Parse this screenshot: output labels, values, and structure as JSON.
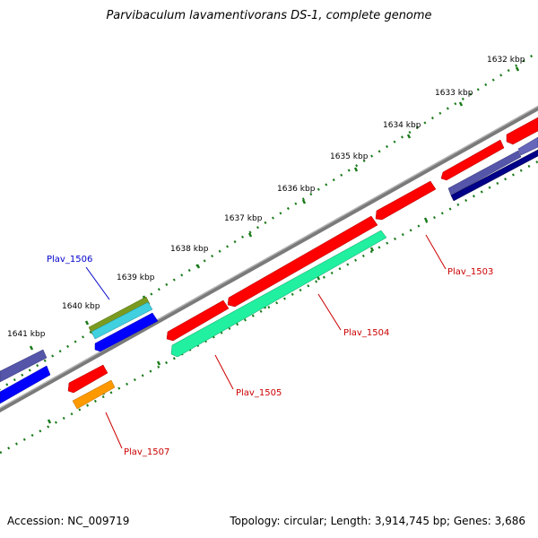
{
  "title": "Parvibaculum lavamentivorans DS-1, complete genome",
  "footer": {
    "accession": "Accession: NC_009719",
    "summary": "Topology: circular; Length: 3,914,745 bp; Genes: 3,686"
  },
  "ruler": {
    "labels": [
      "1632 kbp",
      "1633 kbp",
      "1634 kbp",
      "1635 kbp",
      "1636 kbp",
      "1637 kbp",
      "1638 kbp",
      "1639 kbp",
      "1640 kbp",
      "1641 kbp"
    ]
  },
  "colors": {
    "backbone": "#808080",
    "tick": "#1a7a1a",
    "label_red": "#cc0000",
    "label_blue": "#0000cc",
    "gene_red": "#ff0000",
    "gene_green": "#20f0a0",
    "gene_blue": "#0000ff",
    "gene_olive": "#7a9a20",
    "gene_cyan": "#40d0e0",
    "gene_orange": "#ff9900",
    "gene_slate": "#5555aa"
  },
  "callouts": [
    {
      "name": "Plav_1503",
      "color": "#cc0000"
    },
    {
      "name": "Plav_1504",
      "color": "#cc0000"
    },
    {
      "name": "Plav_1505",
      "color": "#cc0000"
    },
    {
      "name": "Plav_1506",
      "color": "#0000cc"
    },
    {
      "name": "Plav_1507",
      "color": "#cc0000"
    }
  ]
}
